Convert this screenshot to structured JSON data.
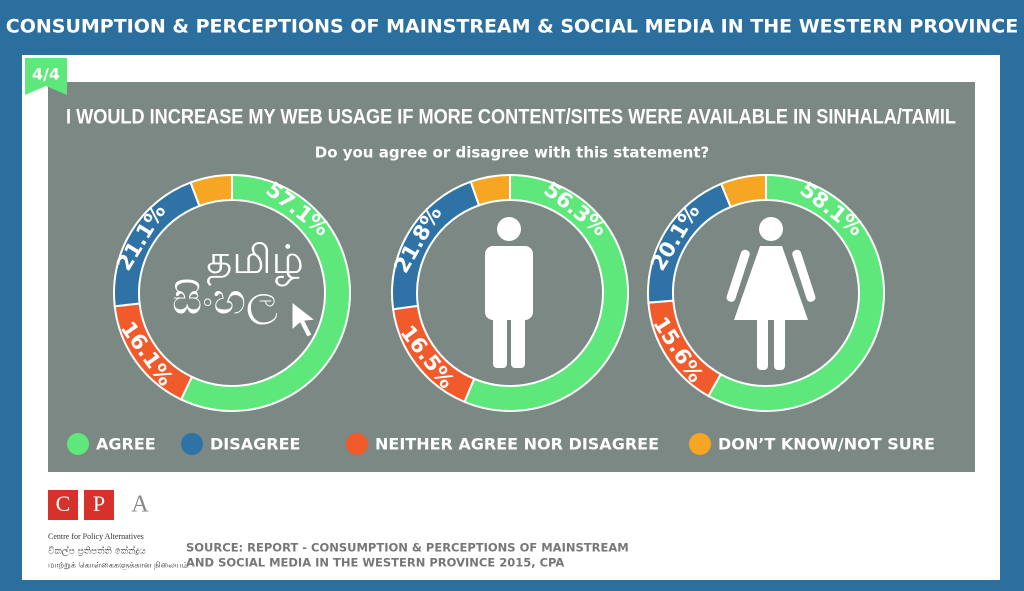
{
  "header": "CONSUMPTION & PERCEPTIONS OF MAINSTREAM & SOCIAL MEDIA IN THE WESTERN PROVINCE",
  "badge": "4/4",
  "title": "I WOULD INCREASE MY WEB USAGE IF MORE CONTENT/SITES WERE AVAILABLE IN SINHALA/TAMIL",
  "subtitle": "Do you agree or disagree with this statement?",
  "icon_text": [
    "தமிழ்",
    "සිංහල"
  ],
  "legend": {
    "categories": [
      "AGREE",
      "DISAGREE",
      "NEITHER AGREE NOR DISAGREE",
      "DON’T KNOW/NOT SURE"
    ],
    "colors": [
      "#5ee87b",
      "#2f73a6",
      "#f15a2b",
      "#f6a623"
    ]
  },
  "chart_data": [
    {
      "type": "donut",
      "values": [
        57.1,
        21.1,
        16.1,
        5.7
      ],
      "value_labels": [
        "57.1%",
        "21.1%",
        "16.1%",
        null
      ]
    },
    {
      "type": "donut",
      "values": [
        56.3,
        21.8,
        16.5,
        5.4
      ],
      "value_labels": [
        "56.3%",
        "21.8%",
        "16.5%",
        null
      ]
    },
    {
      "type": "donut",
      "values": [
        58.1,
        20.1,
        15.6,
        6.2
      ],
      "value_labels": [
        "58.1%",
        "20.1%",
        "15.6%",
        null
      ]
    }
  ],
  "logo": {
    "letters": [
      "C",
      "P",
      "A"
    ],
    "name": "Centre for Policy Alternatives",
    "sinhala": "විකල්ප ප්‍රතිපත්ති කේන්ද්‍රය",
    "tamil": "மாற்றுக் கொள்கைகளுக்கான நிலையம்"
  },
  "source": [
    "SOURCE: REPORT - CONSUMPTION & PERCEPTIONS OF MAINSTREAM",
    "AND SOCIAL MEDIA IN THE WESTERN PROVINCE 2015, CPA"
  ]
}
